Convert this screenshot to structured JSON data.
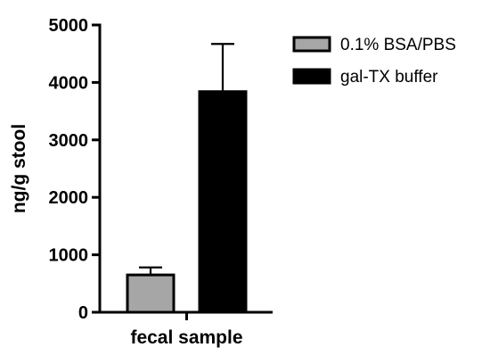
{
  "chart_data": {
    "type": "bar",
    "xlabel": "fecal sample",
    "ylabel": "ng/g stool",
    "ylim": [
      0,
      5000
    ],
    "yticks": [
      0,
      1000,
      2000,
      3000,
      4000,
      5000
    ],
    "ytick_labels": [
      "0",
      "1000",
      "2000",
      "3000",
      "4000",
      "5000"
    ],
    "grid": false,
    "legend_position": "top-right",
    "categories": [
      "fecal sample"
    ],
    "series": [
      {
        "name": "0.1% BSA/PBS",
        "values": [
          650
        ],
        "error": [
          130
        ],
        "color": "#a6a6a6"
      },
      {
        "name": "gal-TX buffer",
        "values": [
          3840
        ],
        "error": [
          830
        ],
        "color": "#000000"
      }
    ]
  }
}
